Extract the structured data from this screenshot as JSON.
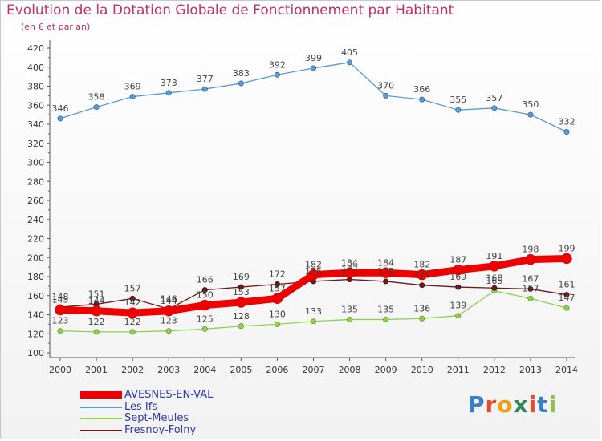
{
  "title": "Evolution de la Dotation Globale de Fonctionnement par Habitant",
  "subtitle": "(en € et par an)",
  "logo_text": "Proxiti",
  "chart_data": {
    "type": "line",
    "x": [
      "2000",
      "2001",
      "2002",
      "2003",
      "2004",
      "2005",
      "2006",
      "2007",
      "2008",
      "2009",
      "2010",
      "2011",
      "2012",
      "2013",
      "2014"
    ],
    "ylim": [
      100,
      420
    ],
    "yticks": [
      100,
      120,
      140,
      160,
      180,
      200,
      220,
      240,
      260,
      280,
      300,
      320,
      340,
      360,
      380,
      400,
      420
    ],
    "grid": false,
    "legend_position": "bottom-left",
    "series": [
      {
        "name": "AVESNES-EN-VAL",
        "color": "#ee0000",
        "values": [
          145,
          144,
          142,
          144,
          150,
          153,
          157,
          182,
          184,
          184,
          182,
          187,
          191,
          198,
          199
        ]
      },
      {
        "name": "Les Ifs",
        "color": "#5b9bd5",
        "values": [
          346,
          358,
          369,
          373,
          377,
          383,
          392,
          399,
          405,
          370,
          366,
          355,
          357,
          350,
          332
        ]
      },
      {
        "name": "Sept-Meules",
        "color": "#8fd14f",
        "values": [
          123,
          122,
          122,
          123,
          125,
          128,
          130,
          133,
          135,
          135,
          136,
          139,
          165,
          157,
          147
        ]
      },
      {
        "name": "Fresnoy-Folny",
        "color": "#6b1a1a",
        "values": [
          148,
          151,
          157,
          146,
          166,
          169,
          172,
          175,
          177,
          175,
          171,
          169,
          168,
          167,
          161
        ]
      }
    ]
  }
}
